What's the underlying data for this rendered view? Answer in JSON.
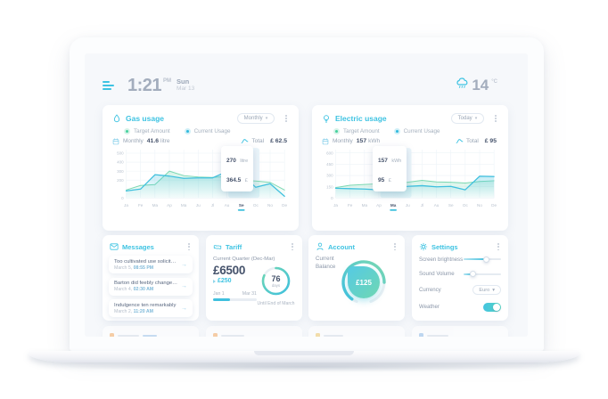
{
  "topbar": {
    "time": "1:21",
    "meridiem": "PM",
    "day": "Sun",
    "date": "Mar 13",
    "temperature": "14",
    "temperature_unit": "°C"
  },
  "icons": {
    "caret": "▾",
    "arrow": "→"
  },
  "gas_card": {
    "title": "Gas usage",
    "period": "Monthly",
    "legend_target": "Target Amount",
    "legend_current": "Current Usage",
    "summary_label": "Monthly",
    "summary_value": "41.6",
    "summary_unit": "litre",
    "total_label": "Total",
    "total_value": "£ 62.5",
    "tooltip_value1": "270",
    "tooltip_unit1": "litre",
    "tooltip_value2": "364.5",
    "tooltip_unit2": "£"
  },
  "electric_card": {
    "title": "Electric usage",
    "period": "Today",
    "legend_target": "Target Amount",
    "legend_current": "Current Usage",
    "summary_label": "Monthly",
    "summary_value": "157",
    "summary_unit": "kWh",
    "total_label": "Total",
    "total_value": "£ 95",
    "tooltip_value1": "157",
    "tooltip_unit1": "kWh",
    "tooltip_value2": "95",
    "tooltip_unit2": "£"
  },
  "chart_data": [
    {
      "type": "area",
      "title": "Gas usage",
      "categories": [
        "Ja",
        "Fe",
        "Ma",
        "Ap",
        "Ma",
        "Ju",
        "Jl",
        "Au",
        "Se",
        "Oc",
        "No",
        "De"
      ],
      "series": [
        {
          "name": "Target Amount",
          "values": [
            90,
            140,
            150,
            300,
            250,
            235,
            230,
            240,
            200,
            190,
            175,
            90
          ]
        },
        {
          "name": "Current Usage",
          "values": [
            80,
            100,
            260,
            245,
            220,
            225,
            225,
            295,
            270,
            120,
            160,
            20
          ]
        }
      ],
      "ylim": [
        0,
        520
      ],
      "yticks": [
        0,
        200,
        300,
        400,
        500
      ],
      "highlight_index": 8,
      "marker_series": 1,
      "ylabel": "litre",
      "grid": true,
      "legend_position": "top"
    },
    {
      "type": "area",
      "title": "Electric usage",
      "categories": [
        "Ja",
        "Fe",
        "Ma",
        "Ap",
        "Ma",
        "Ju",
        "Jl",
        "Au",
        "Se",
        "Oc",
        "No",
        "De"
      ],
      "series": [
        {
          "name": "Target Amount",
          "values": [
            140,
            170,
            180,
            190,
            200,
            210,
            235,
            215,
            210,
            200,
            220,
            230
          ]
        },
        {
          "name": "Current Usage",
          "values": [
            130,
            125,
            120,
            110,
            150,
            155,
            165,
            150,
            155,
            110,
            290,
            285
          ]
        }
      ],
      "ylim": [
        0,
        620
      ],
      "yticks": [
        0,
        150,
        300,
        450,
        600
      ],
      "highlight_index": 4,
      "marker_series": 0,
      "ylabel": "kWh",
      "grid": true,
      "legend_position": "top"
    }
  ],
  "messages": {
    "title": "Messages",
    "items": [
      {
        "text": "Too cultivated use solicitude",
        "date": "March 5,",
        "time": "08:55 PM"
      },
      {
        "text": "Barton did feebly change man",
        "date": "March 4,",
        "time": "02:30 AM"
      },
      {
        "text": "Indulgence ten remarkably",
        "date": "March 2,",
        "time": "11:20 AM"
      }
    ]
  },
  "tariff": {
    "title": "Tariff",
    "subtitle": "Current Quarter (Dec-Mar)",
    "amount": "£6500",
    "delta": "£250",
    "range_start": "Jan 1",
    "range_end": "Mar 31",
    "progress_pct": 38,
    "days_value": "76",
    "days_label": "days",
    "days_ring_pct": 82,
    "caption": "Until End of March"
  },
  "account": {
    "title": "Account",
    "balance_label": "Current Balance",
    "balance": "£125"
  },
  "settings": {
    "title": "Settings",
    "brightness_label": "Screen brightness",
    "brightness_pct": 62,
    "volume_label": "Sound Volume",
    "volume_pct": 25,
    "currency_label": "Currency",
    "currency_value": "Euro",
    "weather_label": "Weather",
    "weather_on": true
  },
  "colors": {
    "accent": "#3EC3E2",
    "green": "#7BD8B2",
    "dark": "#45526B",
    "muted": "#9AA6B6"
  }
}
